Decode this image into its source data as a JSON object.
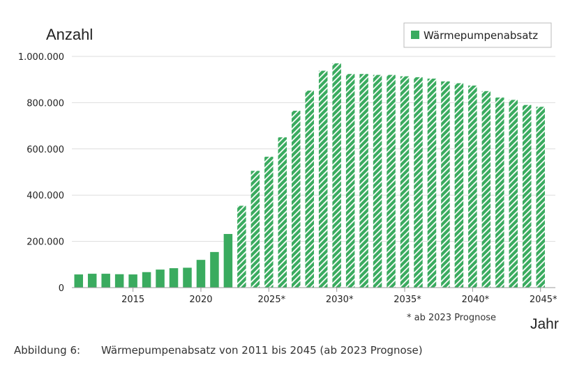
{
  "chart_data": {
    "type": "bar",
    "ylabel": "Anzahl",
    "xlabel": "Jahr",
    "legend": {
      "entry": "Wärmepumpenabsatz",
      "position": "top-right"
    },
    "note": "* ab 2023 Prognose",
    "ylim": [
      0,
      1000000
    ],
    "yticks": [
      0,
      200000,
      400000,
      600000,
      800000,
      1000000
    ],
    "ytick_labels": [
      "0",
      "200.000",
      "400.000",
      "600.000",
      "800.000",
      "1.000.000"
    ],
    "xticks": [
      2015,
      2020,
      2025,
      2030,
      2035,
      2040,
      2045
    ],
    "xtick_labels": [
      "2015",
      "2020",
      "2025*",
      "2030*",
      "2035*",
      "2040*",
      "2045*"
    ],
    "forecast_from": 2023,
    "categories": [
      2011,
      2012,
      2013,
      2014,
      2015,
      2016,
      2017,
      2018,
      2019,
      2020,
      2021,
      2022,
      2023,
      2024,
      2025,
      2026,
      2027,
      2028,
      2029,
      2030,
      2031,
      2032,
      2033,
      2034,
      2035,
      2036,
      2037,
      2038,
      2039,
      2040,
      2041,
      2042,
      2043,
      2044,
      2045
    ],
    "values": [
      57000,
      60000,
      60000,
      58000,
      57000,
      67000,
      78000,
      84000,
      86000,
      120000,
      154000,
      232000,
      354000,
      505000,
      566000,
      650000,
      765000,
      852000,
      938000,
      970000,
      924000,
      924000,
      920000,
      920000,
      914000,
      910000,
      904000,
      892000,
      884000,
      874000,
      850000,
      822000,
      812000,
      790000,
      782000
    ],
    "color": "#3aab5f",
    "grid": true
  },
  "caption": {
    "label": "Abbildung 6:",
    "text": "Wärmepumpenabsatz von 2011 bis 2045 (ab 2023 Prognose)"
  }
}
